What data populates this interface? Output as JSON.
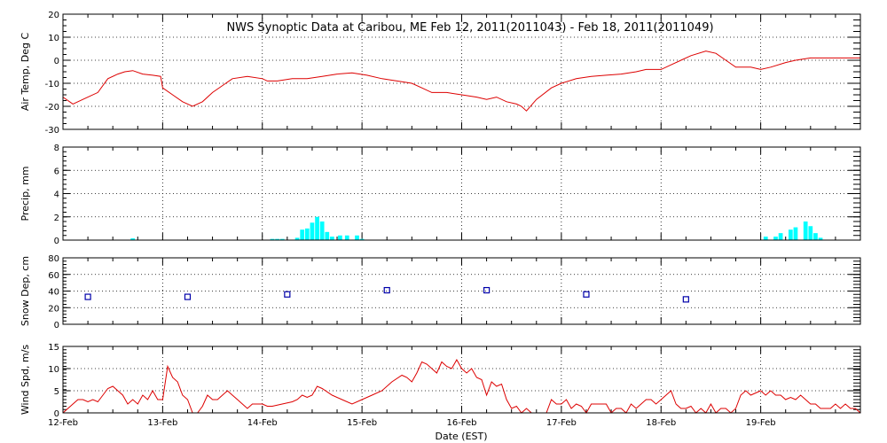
{
  "title": "NWS Synoptic Data at Caribou, ME   Feb 12, 2011(2011043) - Feb 18, 2011(2011049)",
  "xlabel": "Date (EST)",
  "x_ticks": [
    "12-Feb",
    "13-Feb",
    "14-Feb",
    "15-Feb",
    "16-Feb",
    "17-Feb",
    "18-Feb",
    "19-Feb"
  ],
  "colors": {
    "temp": "#dd0000",
    "precip": "#00ffff",
    "snow": "#0000aa",
    "wind": "#dd0000"
  },
  "chart_data": [
    {
      "type": "line",
      "name": "air-temp",
      "ylabel": "Air Temp, Deg C",
      "ylim": [
        -30,
        20
      ],
      "yticks": [
        -30,
        -20,
        -10,
        0,
        10,
        20
      ],
      "x_unit": "days since 12-Feb 00:00 EST",
      "points": [
        [
          0,
          -16
        ],
        [
          0.1,
          -19
        ],
        [
          0.25,
          -16
        ],
        [
          0.35,
          -14
        ],
        [
          0.45,
          -8
        ],
        [
          0.55,
          -6
        ],
        [
          0.62,
          -5
        ],
        [
          0.7,
          -4.5
        ],
        [
          0.8,
          -6
        ],
        [
          0.9,
          -6.5
        ],
        [
          0.98,
          -7
        ],
        [
          1.0,
          -12
        ],
        [
          1.1,
          -15
        ],
        [
          1.2,
          -18
        ],
        [
          1.3,
          -20
        ],
        [
          1.4,
          -18
        ],
        [
          1.5,
          -14
        ],
        [
          1.6,
          -11
        ],
        [
          1.7,
          -8
        ],
        [
          1.85,
          -7
        ],
        [
          2.0,
          -8
        ],
        [
          2.05,
          -9
        ],
        [
          2.15,
          -9
        ],
        [
          2.3,
          -8
        ],
        [
          2.45,
          -8
        ],
        [
          2.6,
          -7
        ],
        [
          2.75,
          -6
        ],
        [
          2.9,
          -5.5
        ],
        [
          3.05,
          -6.5
        ],
        [
          3.2,
          -8
        ],
        [
          3.35,
          -9
        ],
        [
          3.5,
          -10
        ],
        [
          3.6,
          -12
        ],
        [
          3.7,
          -14
        ],
        [
          3.85,
          -14
        ],
        [
          4.0,
          -15
        ],
        [
          4.15,
          -16
        ],
        [
          4.25,
          -17
        ],
        [
          4.35,
          -16
        ],
        [
          4.45,
          -18
        ],
        [
          4.55,
          -19
        ],
        [
          4.6,
          -20
        ],
        [
          4.65,
          -22
        ],
        [
          4.75,
          -17
        ],
        [
          4.9,
          -12
        ],
        [
          5.0,
          -10
        ],
        [
          5.15,
          -8
        ],
        [
          5.3,
          -7
        ],
        [
          5.45,
          -6.5
        ],
        [
          5.6,
          -6
        ],
        [
          5.75,
          -5
        ],
        [
          5.85,
          -4
        ],
        [
          6.0,
          -4
        ],
        [
          6.1,
          -2
        ],
        [
          6.2,
          0
        ],
        [
          6.3,
          2
        ],
        [
          6.45,
          4
        ],
        [
          6.55,
          3
        ],
        [
          6.65,
          0
        ],
        [
          6.75,
          -3
        ],
        [
          6.9,
          -3
        ],
        [
          7.0,
          -4
        ],
        [
          7.1,
          -3
        ],
        [
          7.25,
          -1
        ],
        [
          7.35,
          0
        ],
        [
          7.5,
          1
        ],
        [
          7.65,
          1
        ],
        [
          7.8,
          1
        ],
        [
          7.9,
          1
        ],
        [
          8.0,
          1
        ]
      ]
    },
    {
      "type": "bar",
      "name": "precip",
      "ylabel": "Precip, mm",
      "ylim": [
        0,
        8
      ],
      "yticks": [
        0,
        2,
        4,
        6,
        8
      ],
      "bar_width_days": 0.042,
      "points": [
        [
          0.7,
          0.15
        ],
        [
          2.1,
          0.1
        ],
        [
          2.15,
          0.1
        ],
        [
          2.2,
          0.1
        ],
        [
          2.35,
          0.2
        ],
        [
          2.4,
          0.9
        ],
        [
          2.45,
          1.0
        ],
        [
          2.5,
          1.5
        ],
        [
          2.55,
          2.0
        ],
        [
          2.6,
          1.6
        ],
        [
          2.65,
          0.7
        ],
        [
          2.7,
          0.3
        ],
        [
          2.78,
          0.4
        ],
        [
          2.85,
          0.4
        ],
        [
          2.95,
          0.4
        ],
        [
          3.0,
          0.1
        ],
        [
          7.05,
          0.3
        ],
        [
          7.15,
          0.3
        ],
        [
          7.2,
          0.6
        ],
        [
          7.3,
          0.9
        ],
        [
          7.35,
          1.1
        ],
        [
          7.45,
          1.6
        ],
        [
          7.5,
          1.2
        ],
        [
          7.55,
          0.6
        ],
        [
          7.6,
          0.2
        ]
      ]
    },
    {
      "type": "scatter",
      "name": "snow-depth",
      "ylabel": "Snow Dep, cm",
      "ylim": [
        0,
        80
      ],
      "yticks": [
        0,
        20,
        40,
        60,
        80
      ],
      "points": [
        [
          0.25,
          33
        ],
        [
          1.25,
          33
        ],
        [
          2.25,
          36
        ],
        [
          3.25,
          41
        ],
        [
          4.25,
          41
        ],
        [
          5.25,
          36
        ],
        [
          6.25,
          30
        ]
      ]
    },
    {
      "type": "line",
      "name": "wind-speed",
      "ylabel": "Wind Spd, m/s",
      "ylim": [
        0,
        15
      ],
      "yticks": [
        0,
        5,
        10,
        15
      ],
      "points": [
        [
          0,
          0
        ],
        [
          0.05,
          1
        ],
        [
          0.1,
          2
        ],
        [
          0.15,
          3
        ],
        [
          0.2,
          3
        ],
        [
          0.25,
          2.5
        ],
        [
          0.3,
          3
        ],
        [
          0.35,
          2.5
        ],
        [
          0.4,
          4
        ],
        [
          0.45,
          5.5
        ],
        [
          0.5,
          6
        ],
        [
          0.55,
          5
        ],
        [
          0.6,
          4
        ],
        [
          0.65,
          2
        ],
        [
          0.7,
          3
        ],
        [
          0.75,
          2
        ],
        [
          0.8,
          4
        ],
        [
          0.85,
          3
        ],
        [
          0.9,
          5
        ],
        [
          0.95,
          3
        ],
        [
          1.0,
          3
        ],
        [
          1.05,
          10.5
        ],
        [
          1.1,
          8
        ],
        [
          1.15,
          7
        ],
        [
          1.2,
          4
        ],
        [
          1.25,
          3
        ],
        [
          1.3,
          0
        ],
        [
          1.35,
          0
        ],
        [
          1.4,
          1.5
        ],
        [
          1.45,
          4
        ],
        [
          1.5,
          3
        ],
        [
          1.55,
          3
        ],
        [
          1.6,
          4
        ],
        [
          1.65,
          5
        ],
        [
          1.7,
          4
        ],
        [
          1.75,
          3
        ],
        [
          1.8,
          2
        ],
        [
          1.85,
          1
        ],
        [
          1.9,
          2
        ],
        [
          2.0,
          2
        ],
        [
          2.05,
          1.5
        ],
        [
          2.1,
          1.5
        ],
        [
          2.2,
          2
        ],
        [
          2.3,
          2.5
        ],
        [
          2.35,
          3
        ],
        [
          2.4,
          4
        ],
        [
          2.45,
          3.5
        ],
        [
          2.5,
          4
        ],
        [
          2.55,
          6
        ],
        [
          2.6,
          5.5
        ],
        [
          2.7,
          4
        ],
        [
          2.8,
          3
        ],
        [
          2.9,
          2
        ],
        [
          3.0,
          3
        ],
        [
          3.1,
          4
        ],
        [
          3.2,
          5
        ],
        [
          3.3,
          7
        ],
        [
          3.4,
          8.5
        ],
        [
          3.45,
          8
        ],
        [
          3.5,
          7
        ],
        [
          3.55,
          9
        ],
        [
          3.6,
          11.5
        ],
        [
          3.65,
          11
        ],
        [
          3.7,
          10
        ],
        [
          3.75,
          9
        ],
        [
          3.8,
          11.5
        ],
        [
          3.85,
          10.5
        ],
        [
          3.9,
          10
        ],
        [
          3.95,
          12
        ],
        [
          4.0,
          10
        ],
        [
          4.05,
          9
        ],
        [
          4.1,
          10
        ],
        [
          4.15,
          8
        ],
        [
          4.2,
          7.5
        ],
        [
          4.25,
          4
        ],
        [
          4.3,
          7
        ],
        [
          4.35,
          6
        ],
        [
          4.4,
          6.5
        ],
        [
          4.45,
          3
        ],
        [
          4.5,
          1
        ],
        [
          4.55,
          1.5
        ],
        [
          4.6,
          0
        ],
        [
          4.65,
          1
        ],
        [
          4.7,
          0
        ],
        [
          4.8,
          0
        ],
        [
          4.85,
          0
        ],
        [
          4.9,
          3
        ],
        [
          4.95,
          2
        ],
        [
          5.0,
          2
        ],
        [
          5.05,
          3
        ],
        [
          5.1,
          1
        ],
        [
          5.15,
          2
        ],
        [
          5.2,
          1.5
        ],
        [
          5.25,
          0
        ],
        [
          5.3,
          2
        ],
        [
          5.35,
          2
        ],
        [
          5.4,
          2
        ],
        [
          5.45,
          2
        ],
        [
          5.5,
          0
        ],
        [
          5.55,
          1
        ],
        [
          5.6,
          1
        ],
        [
          5.65,
          0
        ],
        [
          5.7,
          2
        ],
        [
          5.75,
          1
        ],
        [
          5.8,
          2
        ],
        [
          5.85,
          3
        ],
        [
          5.9,
          3
        ],
        [
          5.95,
          2
        ],
        [
          6.0,
          3
        ],
        [
          6.05,
          4
        ],
        [
          6.1,
          5
        ],
        [
          6.15,
          2
        ],
        [
          6.2,
          1
        ],
        [
          6.25,
          1
        ],
        [
          6.3,
          1.5
        ],
        [
          6.35,
          0
        ],
        [
          6.4,
          1
        ],
        [
          6.45,
          0
        ],
        [
          6.5,
          2
        ],
        [
          6.55,
          0
        ],
        [
          6.6,
          1
        ],
        [
          6.65,
          1
        ],
        [
          6.7,
          0
        ],
        [
          6.75,
          1
        ],
        [
          6.8,
          4
        ],
        [
          6.85,
          5
        ],
        [
          6.9,
          4
        ],
        [
          6.95,
          4.5
        ],
        [
          7.0,
          5
        ],
        [
          7.05,
          4
        ],
        [
          7.1,
          5
        ],
        [
          7.15,
          4
        ],
        [
          7.2,
          4
        ],
        [
          7.25,
          3
        ],
        [
          7.3,
          3.5
        ],
        [
          7.35,
          3
        ],
        [
          7.4,
          4
        ],
        [
          7.45,
          3
        ],
        [
          7.5,
          2
        ],
        [
          7.55,
          2
        ],
        [
          7.6,
          1
        ],
        [
          7.7,
          1
        ],
        [
          7.75,
          2
        ],
        [
          7.8,
          1
        ],
        [
          7.85,
          2
        ],
        [
          7.9,
          1
        ],
        [
          7.95,
          1
        ],
        [
          8.0,
          0
        ]
      ]
    }
  ]
}
